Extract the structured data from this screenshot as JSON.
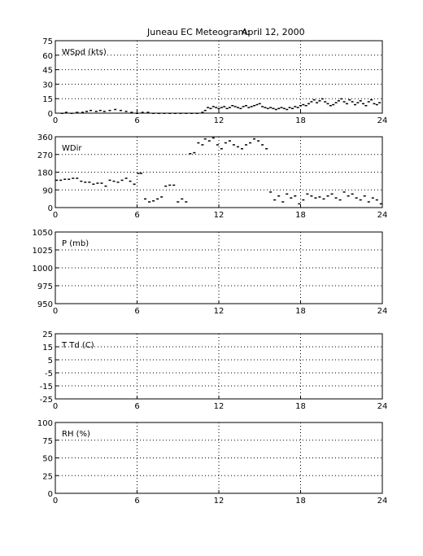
{
  "title": {
    "station": "Juneau EC Meteogram:",
    "date": "April 12, 2000"
  },
  "chart_data": [
    {
      "type": "scatter",
      "label": "WSpd (kts)",
      "xlim": [
        0,
        24
      ],
      "xticks": [
        0,
        6,
        12,
        18,
        24
      ],
      "ylim": [
        0,
        75
      ],
      "yticks": [
        0,
        15,
        30,
        45,
        60,
        75
      ],
      "grid": true,
      "series": [
        {
          "x": [
            0.5,
            0.8,
            1.2,
            1.6,
            2.0,
            2.3,
            2.6,
            3.0,
            3.3,
            3.6,
            4.0,
            4.4,
            4.8,
            5.2,
            5.6,
            6.0,
            6.4,
            6.8,
            7.2,
            7.6,
            8.0,
            8.4,
            8.8,
            9.2,
            9.6,
            10.0,
            10.4,
            10.8,
            11.0,
            11.2,
            11.4,
            11.6,
            11.8,
            12.0,
            12.2,
            12.4,
            12.6,
            12.8,
            13.0,
            13.2,
            13.4,
            13.6,
            13.8,
            14.0,
            14.2,
            14.4,
            14.6,
            14.8,
            15.0,
            15.2,
            15.4,
            15.6,
            15.8,
            16.0,
            16.2,
            16.4,
            16.6,
            16.8,
            17.0,
            17.2,
            17.4,
            17.6,
            17.8,
            18.0,
            18.2,
            18.4,
            18.6,
            18.8,
            19.0,
            19.2,
            19.4,
            19.6,
            19.8,
            20.0,
            20.2,
            20.4,
            20.6,
            20.8,
            21.0,
            21.2,
            21.4,
            21.6,
            21.8,
            22.0,
            22.2,
            22.4,
            22.6,
            22.8,
            23.0,
            23.2,
            23.4,
            23.6,
            23.8
          ],
          "y": [
            0,
            1,
            0,
            1,
            1,
            2,
            3,
            2,
            3,
            2,
            3,
            4,
            3,
            2,
            1,
            0,
            1,
            1,
            0,
            0,
            0,
            0,
            0,
            0,
            0,
            0,
            0,
            1,
            3,
            6,
            5,
            7,
            6,
            5,
            6,
            7,
            5,
            6,
            8,
            7,
            6,
            5,
            7,
            8,
            6,
            7,
            8,
            9,
            10,
            7,
            6,
            5,
            6,
            5,
            4,
            5,
            6,
            5,
            4,
            6,
            5,
            7,
            6,
            8,
            9,
            8,
            10,
            12,
            14,
            11,
            13,
            15,
            12,
            10,
            8,
            9,
            11,
            13,
            15,
            12,
            10,
            14,
            12,
            9,
            11,
            13,
            10,
            8,
            12,
            14,
            10,
            9,
            11
          ]
        }
      ]
    },
    {
      "type": "scatter",
      "label": "WDir",
      "xlim": [
        0,
        24
      ],
      "xticks": [
        0,
        6,
        12,
        18,
        24
      ],
      "ylim": [
        0,
        360
      ],
      "yticks": [
        0,
        90,
        180,
        270,
        360
      ],
      "grid": true,
      "series": [
        {
          "x": [
            0.1,
            0.4,
            0.7,
            1.0,
            1.3,
            1.6,
            1.9,
            2.2,
            2.5,
            2.8,
            3.1,
            3.4,
            3.7,
            4.0,
            4.3,
            4.6,
            4.9,
            5.2,
            5.5,
            5.8,
            6.1,
            6.3,
            6.6,
            6.9,
            7.2,
            7.5,
            7.8,
            8.1,
            8.4,
            8.7,
            9.0,
            9.3,
            9.6,
            9.9,
            10.2,
            10.5,
            10.8,
            11.0,
            11.3,
            11.6,
            11.9,
            12.2,
            12.5,
            12.8,
            13.1,
            13.4,
            13.7,
            14.0,
            14.3,
            14.6,
            14.9,
            15.2,
            15.5,
            15.8,
            16.1,
            16.4,
            16.7,
            17.0,
            17.3,
            17.6,
            17.9,
            18.2,
            18.5,
            18.8,
            19.1,
            19.4,
            19.7,
            20.0,
            20.3,
            20.6,
            20.9,
            21.2,
            21.5,
            21.8,
            22.1,
            22.4,
            22.7,
            23.0,
            23.3,
            23.6,
            23.9
          ],
          "y": [
            140,
            140,
            145,
            145,
            150,
            150,
            135,
            130,
            130,
            120,
            125,
            125,
            110,
            140,
            135,
            130,
            140,
            150,
            135,
            120,
            175,
            175,
            45,
            30,
            35,
            45,
            55,
            110,
            115,
            115,
            30,
            45,
            30,
            275,
            280,
            330,
            320,
            350,
            340,
            355,
            320,
            300,
            330,
            340,
            320,
            310,
            300,
            320,
            330,
            350,
            340,
            320,
            300,
            80,
            40,
            60,
            30,
            70,
            50,
            60,
            20,
            40,
            70,
            60,
            50,
            55,
            45,
            60,
            70,
            50,
            40,
            80,
            60,
            70,
            50,
            40,
            60,
            30,
            50,
            40,
            20
          ]
        }
      ]
    },
    {
      "type": "line",
      "label": "P (mb)",
      "xlim": [
        0,
        24
      ],
      "xticks": [
        0,
        6,
        12,
        18,
        24
      ],
      "ylim": [
        950,
        1050
      ],
      "yticks": [
        950,
        975,
        1000,
        1025,
        1050
      ],
      "grid": true,
      "series": []
    },
    {
      "type": "line",
      "label": "T Td (C)",
      "xlim": [
        0,
        24
      ],
      "xticks": [
        0,
        6,
        12,
        18,
        24
      ],
      "ylim": [
        -25,
        25
      ],
      "yticks": [
        -25,
        -15,
        -5,
        5,
        15,
        25
      ],
      "grid": true,
      "series": []
    },
    {
      "type": "line",
      "label": "RH (%)",
      "xlim": [
        0,
        24
      ],
      "xticks": [
        0,
        6,
        12,
        18,
        24
      ],
      "ylim": [
        0,
        100
      ],
      "yticks": [
        0,
        25,
        50,
        75,
        100
      ],
      "grid": true,
      "series": []
    }
  ]
}
